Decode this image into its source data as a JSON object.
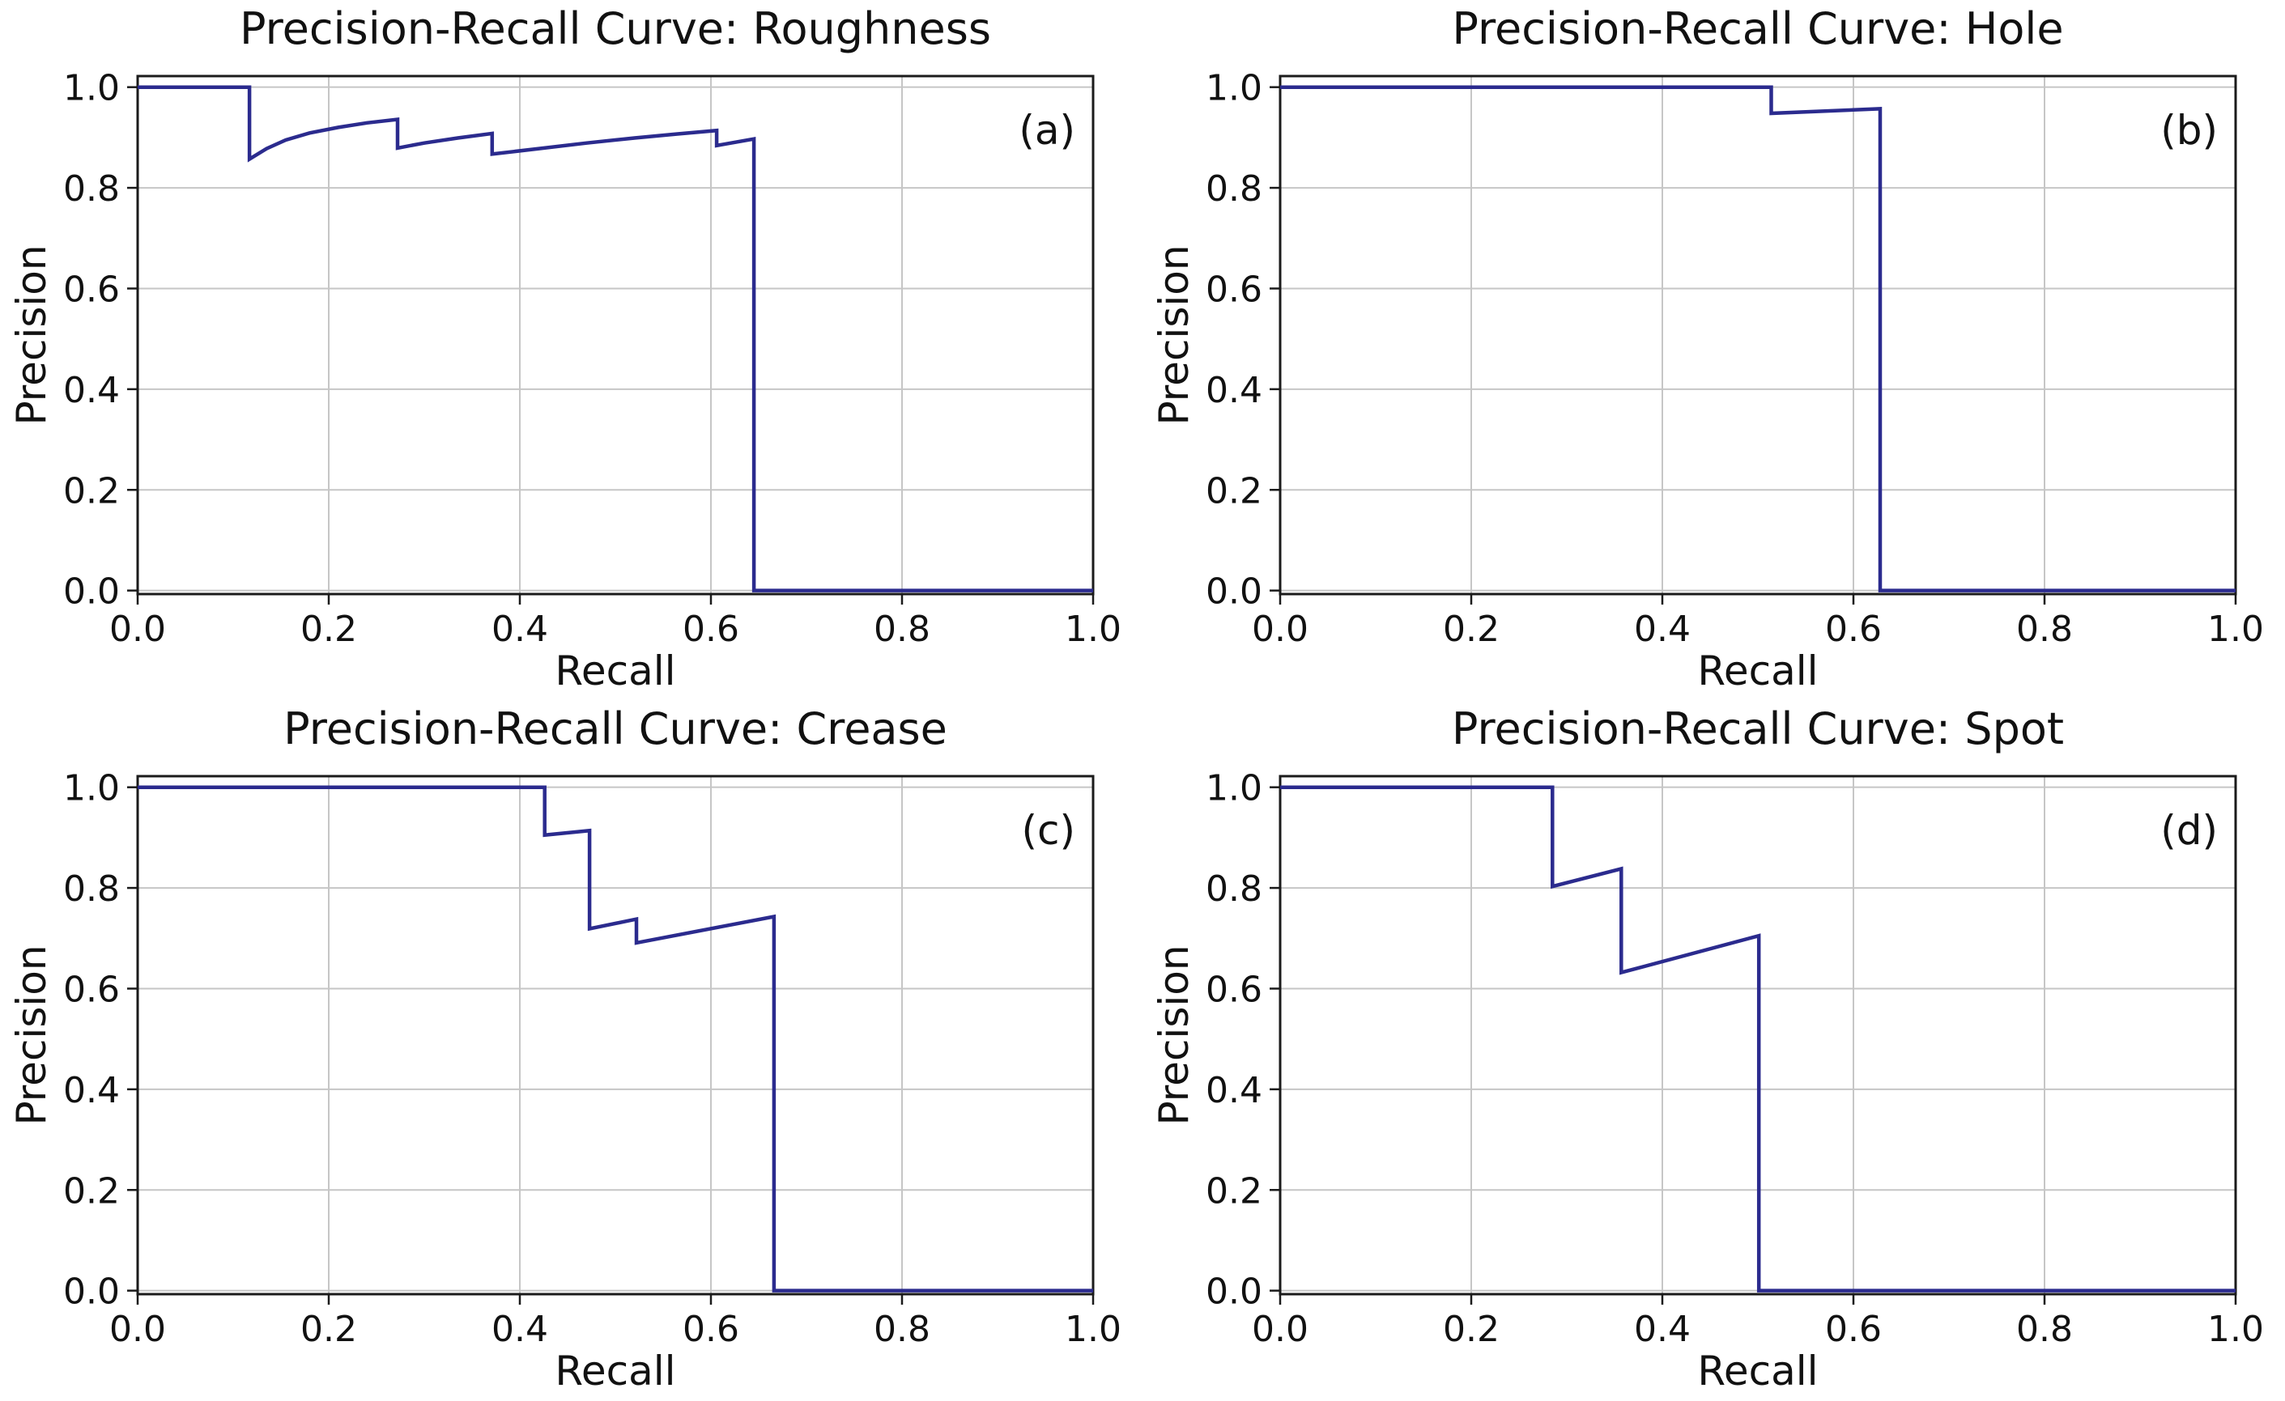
{
  "figure": {
    "background_color": "#ffffff",
    "curve_color": "#2b2b8e",
    "grid_color": "#c6c6c6",
    "spine_color": "#1b1b1b",
    "text_color": "#111111",
    "x_ticks": [
      "0.0",
      "0.2",
      "0.4",
      "0.6",
      "0.8",
      "1.0"
    ],
    "y_ticks": [
      "0.0",
      "0.2",
      "0.4",
      "0.6",
      "0.8",
      "1.0"
    ],
    "grid": true,
    "legend": "none"
  },
  "chart_data": [
    {
      "type": "line",
      "panel": "a",
      "title": "Precision-Recall Curve: Roughness",
      "corner_label": "(a)",
      "xlabel": "Recall",
      "ylabel": "Precision",
      "x_range": [
        0.0,
        1.0
      ],
      "y_range": [
        0.0,
        1.0
      ],
      "grid": true,
      "points": [
        [
          0.0,
          1.0
        ],
        [
          0.117,
          1.0
        ],
        [
          0.117,
          0.857
        ],
        [
          0.135,
          0.878
        ],
        [
          0.155,
          0.895
        ],
        [
          0.18,
          0.909
        ],
        [
          0.21,
          0.92
        ],
        [
          0.24,
          0.929
        ],
        [
          0.272,
          0.936
        ],
        [
          0.272,
          0.879
        ],
        [
          0.3,
          0.889
        ],
        [
          0.335,
          0.899
        ],
        [
          0.371,
          0.908
        ],
        [
          0.371,
          0.867
        ],
        [
          0.42,
          0.878
        ],
        [
          0.47,
          0.889
        ],
        [
          0.52,
          0.899
        ],
        [
          0.565,
          0.907
        ],
        [
          0.606,
          0.914
        ],
        [
          0.606,
          0.884
        ],
        [
          0.645,
          0.897
        ],
        [
          0.645,
          0.0
        ],
        [
          1.0,
          0.0
        ]
      ]
    },
    {
      "type": "line",
      "panel": "b",
      "title": "Precision-Recall Curve: Hole",
      "corner_label": "(b)",
      "xlabel": "Recall",
      "ylabel": "Precision",
      "x_range": [
        0.0,
        1.0
      ],
      "y_range": [
        0.0,
        1.0
      ],
      "grid": true,
      "points": [
        [
          0.0,
          1.0
        ],
        [
          0.514,
          1.0
        ],
        [
          0.514,
          0.948
        ],
        [
          0.628,
          0.957
        ],
        [
          0.628,
          0.0
        ],
        [
          1.0,
          0.0
        ]
      ]
    },
    {
      "type": "line",
      "panel": "c",
      "title": "Precision-Recall Curve: Crease",
      "corner_label": "(c)",
      "xlabel": "Recall",
      "ylabel": "Precision",
      "x_range": [
        0.0,
        1.0
      ],
      "y_range": [
        0.0,
        1.0
      ],
      "grid": true,
      "points": [
        [
          0.0,
          1.0
        ],
        [
          0.426,
          1.0
        ],
        [
          0.426,
          0.905
        ],
        [
          0.473,
          0.914
        ],
        [
          0.473,
          0.719
        ],
        [
          0.522,
          0.738
        ],
        [
          0.522,
          0.691
        ],
        [
          0.666,
          0.743
        ],
        [
          0.666,
          0.0
        ],
        [
          1.0,
          0.0
        ]
      ]
    },
    {
      "type": "line",
      "panel": "d",
      "title": "Precision-Recall Curve: Spot",
      "corner_label": "(d)",
      "xlabel": "Recall",
      "ylabel": "Precision",
      "x_range": [
        0.0,
        1.0
      ],
      "y_range": [
        0.0,
        1.0
      ],
      "grid": true,
      "points": [
        [
          0.0,
          1.0
        ],
        [
          0.285,
          1.0
        ],
        [
          0.285,
          0.803
        ],
        [
          0.357,
          0.838
        ],
        [
          0.357,
          0.632
        ],
        [
          0.501,
          0.705
        ],
        [
          0.501,
          0.0
        ],
        [
          1.0,
          0.0
        ]
      ]
    }
  ]
}
